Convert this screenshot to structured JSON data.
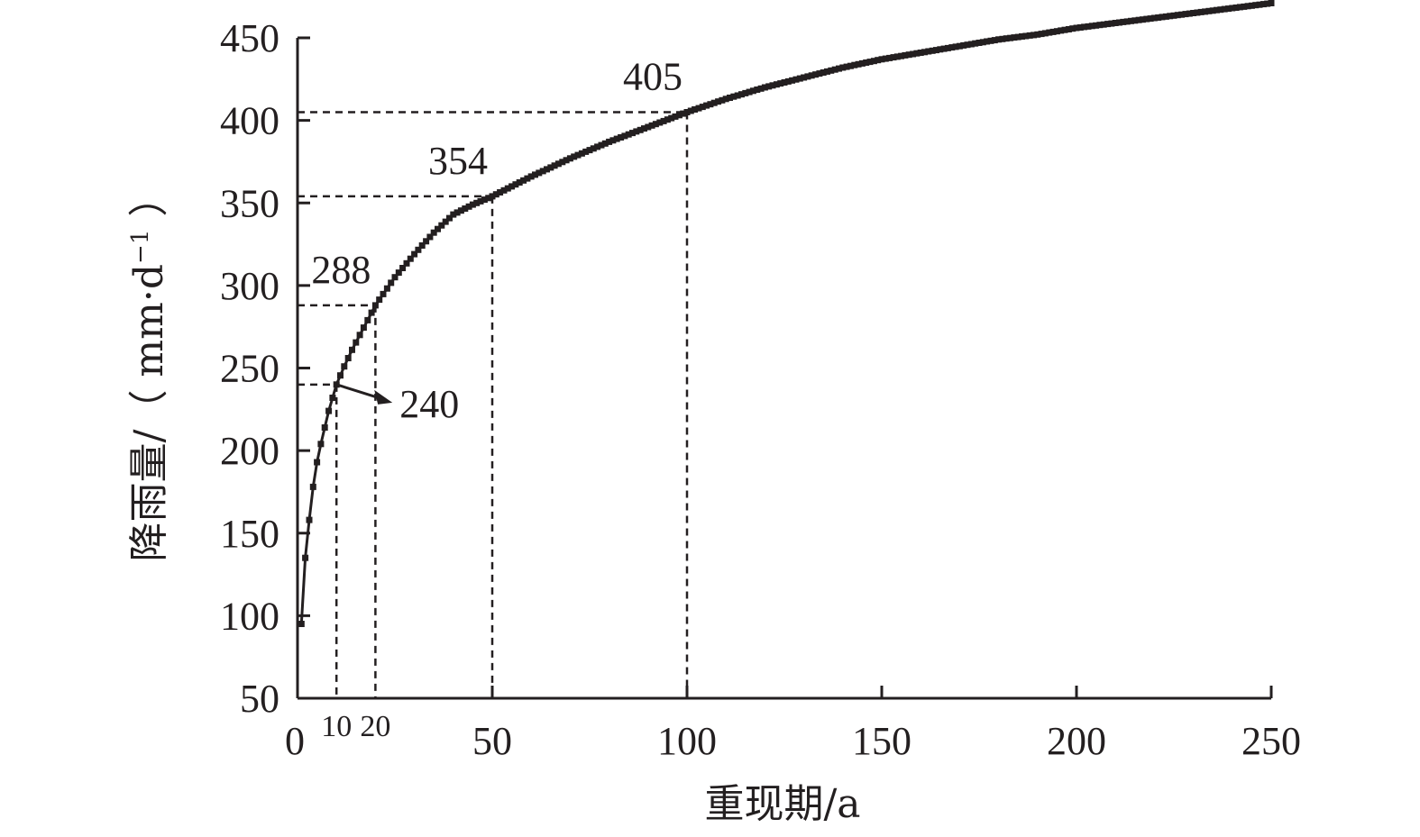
{
  "chart_data": {
    "type": "line",
    "xlabel": "重现期/a",
    "ylabel": {
      "main": "降雨量/（ mm·d",
      "superscript": "−1",
      "close": " ）"
    },
    "xlim": [
      0,
      250
    ],
    "ylim": [
      50,
      450
    ],
    "xticks": [
      0,
      50,
      100,
      150,
      200,
      250
    ],
    "extra_xticks": [
      10,
      20
    ],
    "yticks": [
      50,
      100,
      150,
      200,
      250,
      300,
      350,
      400,
      450
    ],
    "grid": false,
    "legend": "none",
    "line_color": "#231f20",
    "series": [
      {
        "marker": "square",
        "x": [
          1,
          2,
          3,
          4,
          5,
          6,
          7,
          8,
          9,
          10,
          12,
          14,
          16,
          18,
          20,
          25,
          30,
          35,
          40,
          45,
          50,
          60,
          70,
          80,
          90,
          100,
          110,
          120,
          130,
          140,
          150,
          160,
          170,
          180,
          190,
          200,
          210,
          220,
          230,
          240,
          250
        ],
        "y": [
          95,
          135,
          158,
          178,
          193,
          204,
          214,
          224,
          232,
          240,
          251,
          261,
          270,
          279,
          288,
          305,
          319,
          332,
          343,
          349,
          354,
          366,
          377,
          387,
          396,
          405,
          413,
          420,
          426,
          432,
          437,
          441,
          445,
          449,
          452,
          456,
          459,
          462,
          465,
          468,
          471
        ]
      }
    ],
    "annotations": [
      {
        "x": 10,
        "y": 240,
        "text": "240"
      },
      {
        "x": 20,
        "y": 288,
        "text": "288"
      },
      {
        "x": 50,
        "y": 354,
        "text": "354"
      },
      {
        "x": 100,
        "y": 405,
        "text": "405"
      }
    ]
  }
}
